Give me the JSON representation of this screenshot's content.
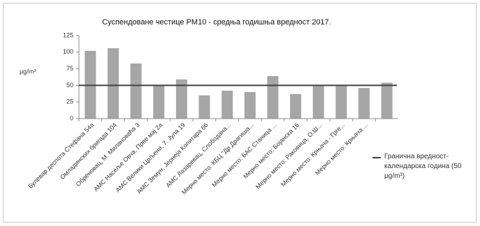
{
  "chart_data": {
    "type": "bar",
    "title": "Суспендоване честице PM10 - средња годишња вредност 2017.",
    "y_label": "µg/m³",
    "categories": [
      "Булевар деспота Стефана 54а",
      "Омладинских бригада 104",
      "Обреновац, М. Милановаћа 3",
      "АМС Насеље Овча, Прве мај 2а",
      "АМС Велики Црљени, 7. Јула 19",
      "АМС Земун, Јернеја Копитара 66",
      "АМС Лазаревац, Слободана...",
      "Мерно место: КБЦ \"Др Драгиша...",
      "Мерно место: БАС Станица ...",
      "Мерно место: Бојанска 16",
      "Мерно место: Раковица, О.Ш...",
      "Мерно место: Крњача - Грге...",
      "Мерно место: Крњача ...",
      null
    ],
    "values": [
      102,
      106,
      83,
      50,
      59,
      35,
      42,
      40,
      64,
      37,
      49,
      49,
      46,
      54
    ],
    "color": "#a6a6a6",
    "reference_line": {
      "name": "Гранична вредност-календарска година (50 µg/m³)",
      "value": 50,
      "color": "#404040"
    },
    "ylim": [
      0,
      125
    ],
    "yticks": [
      0,
      25,
      50,
      75,
      100,
      125
    ],
    "grid": false
  }
}
